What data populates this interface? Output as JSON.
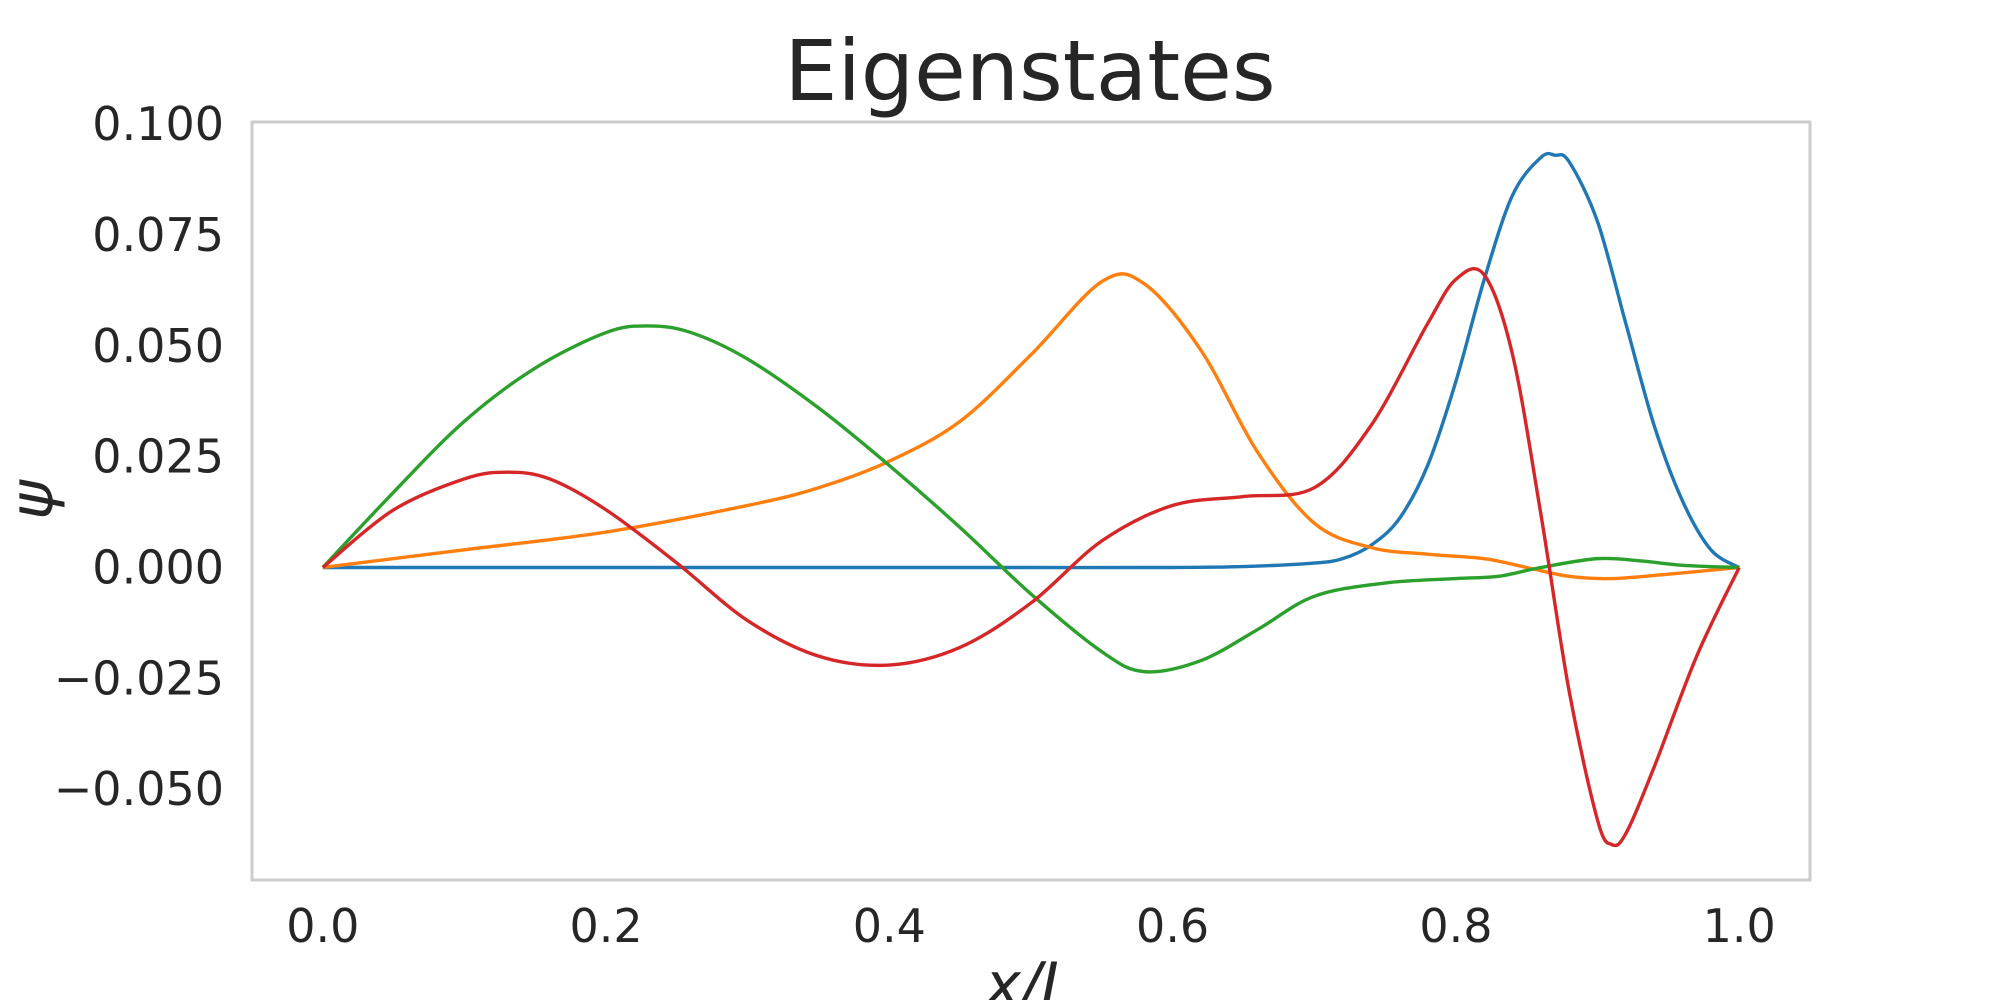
{
  "chart_data": {
    "type": "line",
    "title": "Eigenstates",
    "xlabel": "x/L",
    "ylabel": "ψ",
    "xlim": [
      -0.05,
      1.05
    ],
    "ylim": [
      -0.0705,
      0.1005
    ],
    "xticks": [
      "0.0",
      "0.2",
      "0.4",
      "0.6",
      "0.8",
      "1.0"
    ],
    "xtick_values": [
      0.0,
      0.2,
      0.4,
      0.6,
      0.8,
      1.0
    ],
    "yticks": [
      "0.100",
      "0.075",
      "0.050",
      "0.025",
      "0.000",
      "−0.025",
      "−0.050"
    ],
    "ytick_values": [
      0.1,
      0.075,
      0.05,
      0.025,
      0.0,
      -0.025,
      -0.05
    ],
    "grid": false,
    "legend": "none",
    "series": [
      {
        "color": "#1f77b4",
        "x": [
          0.0,
          0.1,
          0.2,
          0.3,
          0.4,
          0.5,
          0.6,
          0.65,
          0.7,
          0.72,
          0.74,
          0.76,
          0.78,
          0.8,
          0.82,
          0.84,
          0.86,
          0.87,
          0.88,
          0.9,
          0.92,
          0.94,
          0.96,
          0.98,
          1.0
        ],
        "y": [
          0.0,
          0.0,
          0.0,
          0.0,
          0.0,
          0.0,
          0.0,
          0.0002,
          0.001,
          0.002,
          0.005,
          0.011,
          0.023,
          0.042,
          0.065,
          0.084,
          0.0925,
          0.093,
          0.0915,
          0.078,
          0.055,
          0.032,
          0.015,
          0.004,
          0.0
        ]
      },
      {
        "color": "#ff7f0e",
        "x": [
          0.0,
          0.1,
          0.2,
          0.3,
          0.35,
          0.4,
          0.45,
          0.5,
          0.55,
          0.58,
          0.62,
          0.66,
          0.7,
          0.74,
          0.78,
          0.82,
          0.85,
          0.88,
          0.91,
          0.95,
          1.0
        ],
        "y": [
          0.0,
          0.004,
          0.008,
          0.014,
          0.018,
          0.024,
          0.033,
          0.048,
          0.0645,
          0.064,
          0.049,
          0.026,
          0.01,
          0.0045,
          0.003,
          0.002,
          0.0,
          -0.002,
          -0.0025,
          -0.0015,
          0.0
        ]
      },
      {
        "color": "#2ca02c",
        "x": [
          0.0,
          0.05,
          0.1,
          0.15,
          0.2,
          0.23,
          0.26,
          0.3,
          0.35,
          0.4,
          0.45,
          0.5,
          0.55,
          0.58,
          0.62,
          0.66,
          0.7,
          0.75,
          0.8,
          0.83,
          0.86,
          0.9,
          0.93,
          0.96,
          1.0
        ],
        "y": [
          0.0,
          0.017,
          0.033,
          0.045,
          0.053,
          0.0545,
          0.053,
          0.047,
          0.036,
          0.023,
          0.009,
          -0.006,
          -0.019,
          -0.0235,
          -0.021,
          -0.014,
          -0.0065,
          -0.0035,
          -0.0025,
          -0.002,
          0.0,
          0.002,
          0.0015,
          0.0005,
          0.0
        ]
      },
      {
        "color": "#d62728",
        "x": [
          0.0,
          0.05,
          0.1,
          0.13,
          0.16,
          0.2,
          0.25,
          0.3,
          0.35,
          0.4,
          0.45,
          0.5,
          0.55,
          0.6,
          0.65,
          0.7,
          0.74,
          0.78,
          0.8,
          0.82,
          0.84,
          0.86,
          0.88,
          0.9,
          0.91,
          0.92,
          0.94,
          0.97,
          1.0
        ],
        "y": [
          0.0,
          0.013,
          0.02,
          0.0215,
          0.02,
          0.013,
          0.001,
          -0.012,
          -0.02,
          -0.022,
          -0.018,
          -0.008,
          0.006,
          0.014,
          0.016,
          0.018,
          0.032,
          0.055,
          0.065,
          0.066,
          0.048,
          0.012,
          -0.028,
          -0.057,
          -0.0625,
          -0.06,
          -0.045,
          -0.02,
          0.0
        ]
      }
    ]
  }
}
